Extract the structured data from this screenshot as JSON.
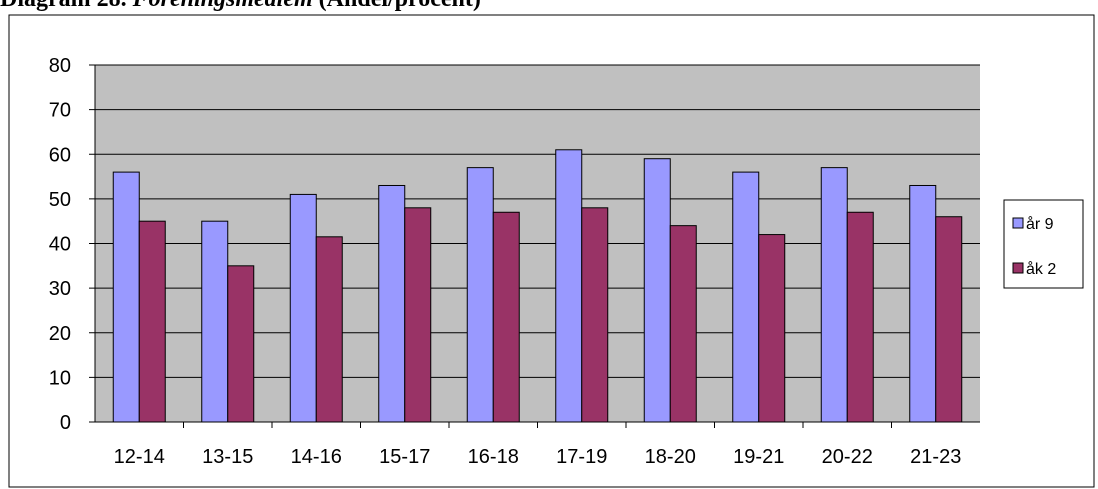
{
  "heading": {
    "prefix": "Diagram 28. ",
    "emphasis": "Föreningsmedlem",
    "suffix": " (Andel/procent)"
  },
  "colors": {
    "plot_background": "#c0c0c0",
    "series_1": "#9999ff",
    "series_2": "#993366"
  },
  "chart_data": {
    "type": "bar",
    "title": "",
    "xlabel": "",
    "ylabel": "",
    "categories": [
      "12-14",
      "13-15",
      "14-16",
      "15-17",
      "16-18",
      "17-19",
      "18-20",
      "19-21",
      "20-22",
      "21-23"
    ],
    "series": [
      {
        "name": "år 9",
        "values": [
          56,
          45,
          51,
          53,
          57,
          61,
          59,
          56,
          57,
          53
        ]
      },
      {
        "name": "åk 2",
        "values": [
          45,
          35,
          41.5,
          48,
          47,
          48,
          44,
          42,
          47,
          46
        ]
      }
    ],
    "ylim": [
      0,
      80
    ],
    "yticks": [
      0,
      10,
      20,
      30,
      40,
      50,
      60,
      70,
      80
    ],
    "grid": true,
    "legend": "right"
  }
}
